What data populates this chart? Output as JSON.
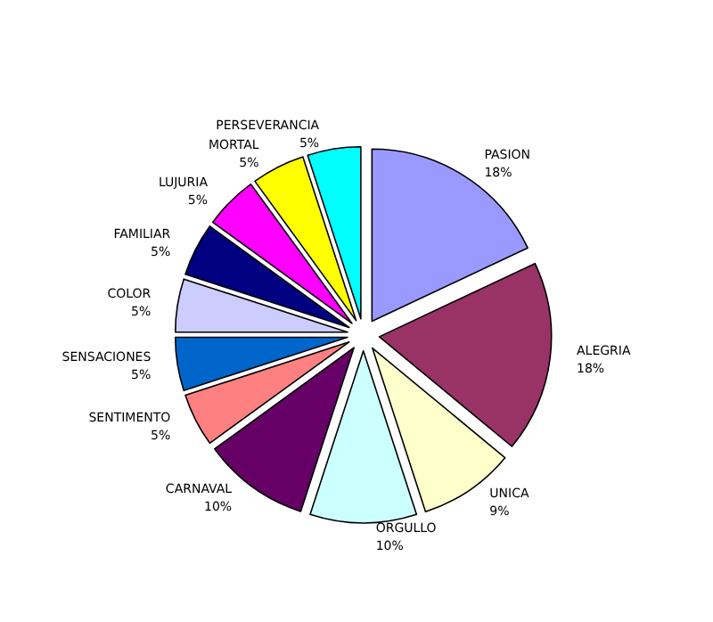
{
  "chart_data": {
    "type": "pie",
    "categories": [
      "PASION",
      "ALEGRIA",
      "UNICA",
      "ORGULLO",
      "CARNAVAL",
      "SENTIMENTO",
      "SENSACIONES",
      "COLOR",
      "FAMILIAR",
      "LUJURIA",
      "MORTAL",
      "PERSEVERANCIA"
    ],
    "values": [
      18,
      18,
      9,
      10,
      10,
      5,
      5,
      5,
      5,
      5,
      5,
      5
    ],
    "colors": [
      "#9999ff",
      "#993366",
      "#ffffcc",
      "#ccffff",
      "#660066",
      "#ff8080",
      "#0066cc",
      "#ccccff",
      "#000080",
      "#ff00ff",
      "#ffff00",
      "#00ffff"
    ],
    "value_labels": [
      "18%",
      "18%",
      "9%",
      "10%",
      "10%",
      "5%",
      "5%",
      "5%",
      "5%",
      "5%",
      "5%",
      "5%"
    ],
    "legend": false
  }
}
